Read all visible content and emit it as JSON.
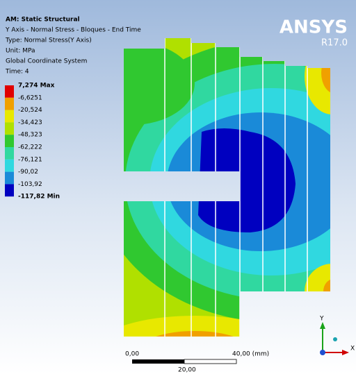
{
  "header": {
    "lines": [
      "AM: Static Structural",
      "Y Axis - Normal Stress - Bloques - End Time",
      "Type: Normal Stress(Y Axis)",
      "Unit: MPa",
      "Global Coordinate System",
      "Time: 4"
    ]
  },
  "logo": {
    "name": "ANSYS",
    "release": "R17.0"
  },
  "legend": {
    "labels": [
      "7,274 Max",
      "-6,6251",
      "-20,524",
      "-34,423",
      "-48,323",
      "-62,222",
      "-76,121",
      "-90,02",
      "-103,92",
      "-117,82 Min"
    ],
    "colors": [
      "#e00000",
      "#f0a000",
      "#e8e800",
      "#b0e000",
      "#30c830",
      "#30d8a0",
      "#30d8e0",
      "#1a8ad8",
      "#0000c0"
    ]
  },
  "scale_bar": {
    "start": "0,00",
    "end": "40,00 (mm)",
    "middle": "20,00"
  },
  "triad": {
    "y": "Y",
    "x": "X"
  }
}
